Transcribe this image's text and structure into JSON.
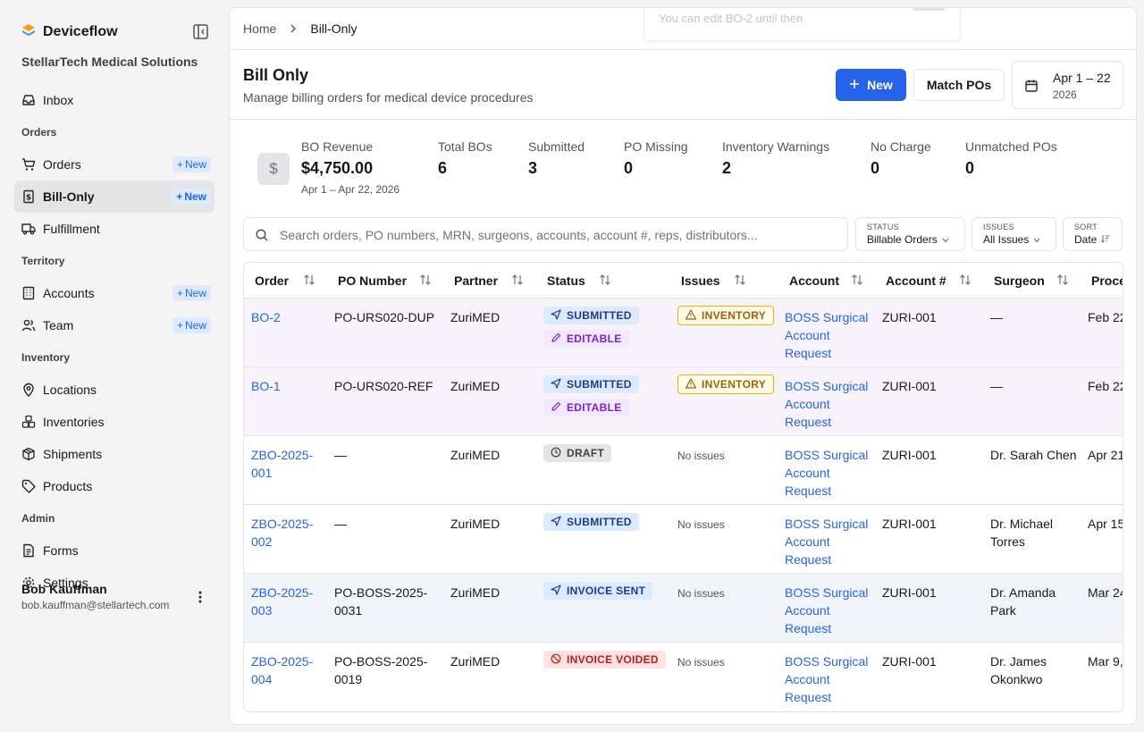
{
  "app": {
    "brand": "Deviceflow",
    "org": "StellarTech Medical Solutions"
  },
  "sidebar": {
    "inbox": "Inbox",
    "sections": {
      "orders": "Orders",
      "territory": "Territory",
      "inventory": "Inventory",
      "admin": "Admin"
    },
    "items": {
      "orders": "Orders",
      "bill_only": "Bill-Only",
      "fulfillment": "Fulfillment",
      "accounts": "Accounts",
      "team": "Team",
      "locations": "Locations",
      "inventories": "Inventories",
      "shipments": "Shipments",
      "products": "Products",
      "forms": "Forms",
      "settings": "Settings"
    },
    "new_label": "New"
  },
  "user": {
    "name": "Bob Kauffman",
    "email": "bob.kauffman@stellartech.com"
  },
  "toast": {
    "text": "You can edit BO-2 until then"
  },
  "breadcrumb": {
    "home": "Home",
    "current": "Bill-Only"
  },
  "header": {
    "title": "Bill Only",
    "subtitle": "Manage billing orders for medical device procedures",
    "new_button": "New",
    "match_button": "Match POs",
    "date_range": "Apr 1 – 22",
    "date_year": "2026"
  },
  "stats": {
    "revenue_label": "BO Revenue",
    "revenue_value": "$4,750.00",
    "revenue_sub": "Apr 1 – Apr 22, 2026",
    "total_label": "Total BOs",
    "total_value": "6",
    "submitted_label": "Submitted",
    "submitted_value": "3",
    "po_missing_label": "PO Missing",
    "po_missing_value": "0",
    "inv_warn_label": "Inventory Warnings",
    "inv_warn_value": "2",
    "no_charge_label": "No Charge",
    "no_charge_value": "0",
    "unmatched_label": "Unmatched POs",
    "unmatched_value": "0"
  },
  "filters": {
    "search_placeholder": "Search orders, PO numbers, MRN, surgeons, accounts, account #, reps, distributors...",
    "status_label": "STATUS",
    "status_value": "Billable Orders",
    "issues_label": "ISSUES",
    "issues_value": "All Issues",
    "sort_label": "SORT",
    "sort_value": "Date"
  },
  "table": {
    "columns": [
      "Order",
      "PO Number",
      "Partner",
      "Status",
      "Issues",
      "Account",
      "Account #",
      "Surgeon",
      "Procedure"
    ],
    "rows": [
      {
        "order_l1": "BO-2",
        "order_l2": "",
        "po_l1": "PO-URS020-DUP",
        "po_l2": "",
        "partner": "ZuriMED",
        "status": "SUBMITTED",
        "status2": "EDITABLE",
        "issue": "INVENTORY",
        "account_l1": "BOSS Surgical",
        "account_l2": "Account",
        "account_l3": "Request",
        "account_num": "ZURI-001",
        "surgeon_l1": "—",
        "surgeon_l2": "",
        "procedure": "Feb 22"
      },
      {
        "order_l1": "BO-1",
        "order_l2": "",
        "po_l1": "PO-URS020-REF",
        "po_l2": "",
        "partner": "ZuriMED",
        "status": "SUBMITTED",
        "status2": "EDITABLE",
        "issue": "INVENTORY",
        "account_l1": "BOSS Surgical",
        "account_l2": "Account",
        "account_l3": "Request",
        "account_num": "ZURI-001",
        "surgeon_l1": "—",
        "surgeon_l2": "",
        "procedure": "Feb 22"
      },
      {
        "order_l1": "ZBO-2025-",
        "order_l2": "001",
        "po_l1": "—",
        "po_l2": "",
        "partner": "ZuriMED",
        "status": "DRAFT",
        "issue": "No issues",
        "account_l1": "BOSS Surgical",
        "account_l2": "Account",
        "account_l3": "Request",
        "account_num": "ZURI-001",
        "surgeon_l1": "Dr. Sarah Chen",
        "surgeon_l2": "",
        "procedure": "Apr 21"
      },
      {
        "order_l1": "ZBO-2025-",
        "order_l2": "002",
        "po_l1": "—",
        "po_l2": "",
        "partner": "ZuriMED",
        "status": "SUBMITTED",
        "issue": "No issues",
        "account_l1": "BOSS Surgical",
        "account_l2": "Account",
        "account_l3": "Request",
        "account_num": "ZURI-001",
        "surgeon_l1": "Dr. Michael",
        "surgeon_l2": "Torres",
        "procedure": "Apr 15"
      },
      {
        "order_l1": "ZBO-2025-",
        "order_l2": "003",
        "po_l1": "PO-BOSS-2025-",
        "po_l2": "0031",
        "partner": "ZuriMED",
        "status": "INVOICE SENT",
        "issue": "No issues",
        "account_l1": "BOSS Surgical",
        "account_l2": "Account",
        "account_l3": "Request",
        "account_num": "ZURI-001",
        "surgeon_l1": "Dr. Amanda",
        "surgeon_l2": "Park",
        "procedure": "Mar 24"
      },
      {
        "order_l1": "ZBO-2025-",
        "order_l2": "004",
        "po_l1": "PO-BOSS-2025-",
        "po_l2": "0019",
        "partner": "ZuriMED",
        "status": "INVOICE VOIDED",
        "issue": "No issues",
        "account_l1": "BOSS Surgical",
        "account_l2": "Account",
        "account_l3": "Request",
        "account_num": "ZURI-001",
        "surgeon_l1": "Dr. James",
        "surgeon_l2": "Okonkwo",
        "procedure": "Mar 9,"
      }
    ]
  },
  "colors": {
    "accent": "#2563eb",
    "submitted_bg": "#dbeafe",
    "editable_bg": "#f3e8ff",
    "voided_bg": "#fee2e2",
    "inventory_border": "#eab308"
  }
}
